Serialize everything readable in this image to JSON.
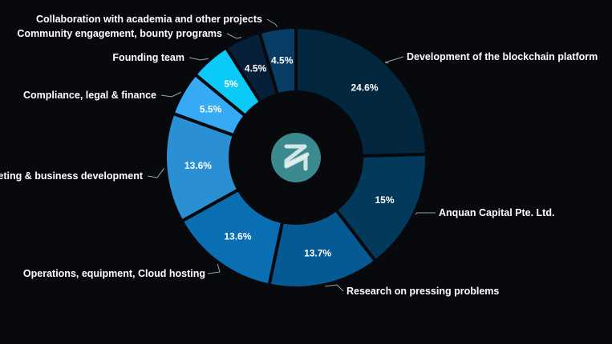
{
  "chart_data": {
    "type": "pie",
    "variant": "donut",
    "slices": [
      {
        "label": "Development of the blockchain platform",
        "value": 24.6,
        "value_label": "24.6%",
        "color": "#03273f"
      },
      {
        "label": "Anquan Capital Pte. Ltd.",
        "value": 15,
        "value_label": "15%",
        "color": "#033a5c"
      },
      {
        "label": "Research on pressing problems",
        "value": 13.7,
        "value_label": "13.7%",
        "color": "#065a94"
      },
      {
        "label": "Operations, equipment, Cloud hosting",
        "value": 13.6,
        "value_label": "13.6%",
        "color": "#0a6eb3"
      },
      {
        "label": "eting & business development",
        "value": 13.6,
        "value_label": "13.6%",
        "color": "#2a8fd3"
      },
      {
        "label": "Compliance, legal & finance",
        "value": 5.5,
        "value_label": "5.5%",
        "color": "#37aaf6"
      },
      {
        "label": "Founding team",
        "value": 5,
        "value_label": "5%",
        "color": "#0ccaf8"
      },
      {
        "label": "Community engagement, bounty programs",
        "value": 4.5,
        "value_label": "4.5%",
        "color": "#052038"
      },
      {
        "label": "Collaboration with academia and other projects",
        "value": 4.5,
        "value_label": "4.5%",
        "color": "#083d66"
      }
    ],
    "center_logo": {
      "icon": "zilliqa-logo-icon",
      "color": "#3a8a8f"
    }
  }
}
